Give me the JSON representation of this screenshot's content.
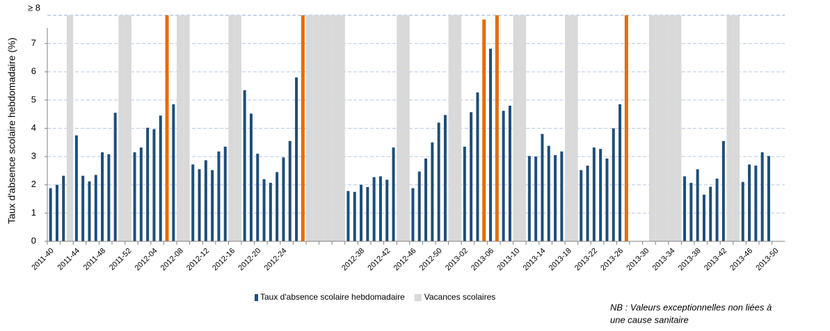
{
  "chart_data": {
    "type": "bar",
    "y_label": "Taux d'absence scolaire hebdomadaire (%)",
    "categories": [
      "2011-40",
      null,
      null,
      null,
      "2011-44",
      null,
      null,
      null,
      "2011-48",
      null,
      null,
      null,
      "2011-52",
      null,
      null,
      null,
      "2012-04",
      null,
      null,
      null,
      "2012-08",
      null,
      null,
      null,
      "2012-12",
      null,
      null,
      null,
      "2012-16",
      null,
      null,
      null,
      "2012-20",
      null,
      null,
      null,
      "2012-24",
      null,
      null,
      null,
      null,
      null,
      null,
      null,
      null,
      null,
      null,
      null,
      "2012-38",
      null,
      null,
      null,
      "2012-42",
      null,
      null,
      null,
      "2012-46",
      null,
      null,
      null,
      "2012-50",
      null,
      null,
      null,
      "2013-02",
      null,
      null,
      null,
      "2013-06",
      null,
      null,
      null,
      "2013-10",
      null,
      null,
      null,
      "2013-14",
      null,
      null,
      null,
      "2013-18",
      null,
      null,
      null,
      "2013-22",
      null,
      null,
      null,
      "2013-26",
      null,
      null,
      null,
      "2013-30",
      null,
      null,
      null,
      "2013-34",
      null,
      null,
      null,
      "2013-38",
      null,
      null,
      null,
      "2013-42",
      null,
      null,
      null,
      "2013-46",
      null,
      null,
      null,
      "2013-50",
      null
    ],
    "series": [
      {
        "name": "Taux d'absence scolaire hebdomadaire",
        "color": "#1f4e79",
        "values": [
          1.88,
          2.0,
          2.32,
          null,
          3.75,
          2.32,
          2.12,
          2.35,
          3.15,
          3.08,
          4.55,
          null,
          null,
          3.15,
          3.32,
          4.02,
          3.97,
          4.45,
          null,
          4.85,
          null,
          null,
          2.72,
          2.55,
          2.87,
          2.52,
          3.18,
          3.35,
          null,
          null,
          5.35,
          4.52,
          3.1,
          2.2,
          2.07,
          2.45,
          2.97,
          3.55,
          5.8,
          null,
          null,
          null,
          null,
          null,
          null,
          null,
          1.78,
          1.75,
          2.0,
          1.92,
          2.27,
          2.3,
          2.18,
          3.32,
          null,
          null,
          1.88,
          2.47,
          2.93,
          3.5,
          4.2,
          4.47,
          null,
          null,
          3.35,
          4.57,
          5.27,
          null,
          6.82,
          null,
          4.62,
          4.8,
          null,
          null,
          3.02,
          3.0,
          3.8,
          3.38,
          3.05,
          3.18,
          null,
          null,
          2.52,
          2.68,
          3.32,
          3.27,
          2.93,
          4.0,
          4.85,
          null,
          null,
          null,
          null,
          null,
          null,
          null,
          null,
          null,
          2.3,
          2.07,
          2.55,
          1.65,
          1.93,
          2.22,
          3.55,
          null,
          null,
          2.1,
          2.72,
          2.68,
          3.15,
          3.02,
          null,
          null
        ]
      },
      {
        "name": "Vacances scolaires",
        "color": "#d9d9d9",
        "values": [
          null,
          null,
          null,
          8,
          null,
          null,
          null,
          null,
          null,
          null,
          null,
          8,
          8,
          null,
          null,
          null,
          null,
          null,
          null,
          null,
          8,
          8,
          null,
          null,
          null,
          null,
          null,
          null,
          8,
          8,
          null,
          null,
          null,
          null,
          null,
          null,
          null,
          null,
          null,
          null,
          8,
          8,
          8,
          8,
          8,
          8,
          null,
          null,
          null,
          null,
          null,
          null,
          null,
          null,
          8,
          8,
          null,
          null,
          null,
          null,
          null,
          null,
          8,
          8,
          null,
          null,
          null,
          null,
          null,
          null,
          null,
          null,
          8,
          8,
          null,
          null,
          null,
          null,
          null,
          null,
          8,
          8,
          null,
          null,
          null,
          null,
          null,
          null,
          null,
          null,
          null,
          null,
          null,
          8,
          8,
          8,
          8,
          8,
          null,
          null,
          null,
          null,
          null,
          null,
          null,
          8,
          8,
          null,
          null,
          null,
          null,
          null,
          null,
          null
        ]
      },
      {
        "color": "#e46c0a",
        "values": [
          null,
          null,
          null,
          null,
          null,
          null,
          null,
          null,
          null,
          null,
          null,
          null,
          null,
          null,
          null,
          null,
          null,
          null,
          8,
          null,
          null,
          null,
          null,
          null,
          null,
          null,
          null,
          null,
          null,
          null,
          null,
          null,
          null,
          null,
          null,
          null,
          null,
          null,
          null,
          8,
          null,
          null,
          null,
          null,
          null,
          null,
          null,
          null,
          null,
          null,
          null,
          null,
          null,
          null,
          null,
          null,
          null,
          null,
          null,
          null,
          null,
          null,
          null,
          null,
          null,
          null,
          null,
          7.85,
          null,
          8,
          null,
          null,
          null,
          null,
          null,
          null,
          null,
          null,
          null,
          null,
          null,
          null,
          null,
          null,
          null,
          null,
          null,
          null,
          null,
          8,
          null,
          null,
          null,
          null,
          null,
          null,
          null,
          null,
          null,
          null,
          null,
          null,
          null,
          null,
          null,
          null,
          null,
          null,
          null,
          null,
          null,
          null,
          null,
          null
        ]
      }
    ],
    "ylim": [
      0,
      8
    ],
    "yticks": [
      0,
      1,
      2,
      3,
      4,
      5,
      6,
      7,
      {
        "value": 8,
        "label": "≥ 8"
      }
    ],
    "grid": true,
    "legend": "bottom",
    "annotation": [
      "NB : Valeurs exceptionnelles non liées à",
      "une cause sanitaire"
    ],
    "annotation_color": "#f79646"
  }
}
